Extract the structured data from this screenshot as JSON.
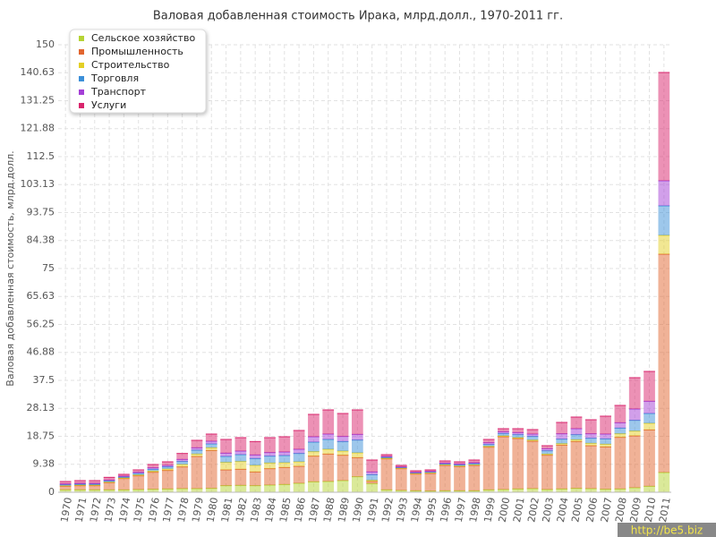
{
  "chart_data": {
    "type": "stacked_bar",
    "title": "Валовая добавленная стоимость Ирака, млрд.долл., 1970-2011 гг.",
    "y_label": "Валовая добавленная стоимость, млрд.долл.",
    "watermark": "http://be5.biz",
    "categories": [
      "1970",
      "1971",
      "1972",
      "1973",
      "1974",
      "1975",
      "1976",
      "1977",
      "1978",
      "1979",
      "1980",
      "1981",
      "1982",
      "1983",
      "1984",
      "1985",
      "1986",
      "1987",
      "1988",
      "1989",
      "1990",
      "1991",
      "1992",
      "1993",
      "1994",
      "1995",
      "1996",
      "1997",
      "1998",
      "1999",
      "2000",
      "2001",
      "2002",
      "2003",
      "2004",
      "2005",
      "2006",
      "2007",
      "2008",
      "2009",
      "2010",
      "2011"
    ],
    "series": [
      {
        "name": "Сельское хозяйство",
        "color": "#b5d334",
        "values": [
          0.8,
          0.8,
          0.8,
          0.8,
          0.8,
          0.9,
          1,
          1.1,
          1.2,
          1.2,
          1.3,
          2.2,
          2.3,
          2.2,
          2.4,
          2.6,
          3,
          3.5,
          3.6,
          3.9,
          5.2,
          2.9,
          0.8,
          0.6,
          0.5,
          0.4,
          0.5,
          0.5,
          0.5,
          0.8,
          0.9,
          1.1,
          1.2,
          0.9,
          1.1,
          1.3,
          1.2,
          1,
          1.1,
          1.5,
          2,
          6.6
        ]
      },
      {
        "name": "Промышленность",
        "color": "#e2652f",
        "values": [
          1.2,
          1.4,
          1.4,
          2.4,
          3.8,
          4.6,
          5.7,
          6.2,
          7.3,
          10.8,
          12.7,
          5.3,
          5.4,
          4.6,
          5.5,
          5.7,
          5.7,
          8.6,
          9.2,
          8.5,
          6.4,
          0.7,
          10.4,
          7.3,
          5.6,
          5.9,
          8.5,
          8.1,
          8.5,
          14.3,
          17.7,
          16.9,
          15.9,
          11.5,
          14.7,
          15.7,
          14.4,
          14.2,
          17.3,
          17.4,
          18.9,
          73.2
        ]
      },
      {
        "name": "Строительство",
        "color": "#e3cf25",
        "values": [
          0.2,
          0.2,
          0.2,
          0.2,
          0.2,
          0.3,
          0.4,
          0.5,
          0.8,
          0.8,
          0.9,
          2.5,
          2.6,
          2.2,
          1.9,
          1.6,
          1.5,
          1.5,
          1.6,
          1.4,
          1.6,
          0.4,
          0.2,
          0.2,
          0.2,
          0.2,
          0.2,
          0.2,
          0.2,
          0.3,
          0.3,
          0.3,
          0.4,
          0.4,
          0.5,
          0.6,
          0.8,
          0.9,
          1.2,
          1.6,
          2.2,
          6.3
        ]
      },
      {
        "name": "Торговля",
        "color": "#3b8fd8",
        "values": [
          0.3,
          0.3,
          0.3,
          0.4,
          0.3,
          0.5,
          0.6,
          0.7,
          1,
          1.3,
          1.3,
          2,
          2.3,
          2.3,
          2.3,
          2.4,
          2.8,
          3.2,
          3.3,
          3.2,
          4.3,
          1.9,
          0.3,
          0.2,
          0.2,
          0.3,
          0.3,
          0.4,
          0.4,
          0.6,
          0.8,
          1,
          1.2,
          1.1,
          1.5,
          1.7,
          1.7,
          1.8,
          1.9,
          3.6,
          3.3,
          9.9
        ]
      },
      {
        "name": "Транспорт",
        "color": "#a43fd6",
        "values": [
          0.3,
          0.3,
          0.3,
          0.3,
          0.3,
          0.4,
          0.5,
          0.5,
          0.7,
          0.8,
          0.9,
          1.1,
          1.2,
          1.2,
          1.2,
          1.2,
          1.4,
          1.8,
          1.8,
          1.7,
          1.9,
          0.9,
          0.3,
          0.2,
          0.2,
          0.2,
          0.3,
          0.3,
          0.3,
          0.6,
          0.6,
          0.7,
          0.8,
          0.7,
          1.8,
          2,
          1.5,
          1.6,
          1.8,
          3.8,
          4.1,
          8.4
        ]
      },
      {
        "name": "Услуги",
        "color": "#d9246c",
        "values": [
          0.8,
          0.9,
          0.9,
          0.9,
          0.6,
          0.8,
          1.1,
          1.2,
          2,
          2.5,
          2.4,
          4.6,
          4.5,
          4.5,
          5,
          5.1,
          6.3,
          7.5,
          8.1,
          7.7,
          8.2,
          4,
          0.6,
          0.5,
          0.5,
          0.5,
          0.7,
          0.7,
          0.9,
          1.1,
          1,
          1.3,
          1.5,
          1,
          3.8,
          3.9,
          4.7,
          6,
          5.8,
          10.5,
          10,
          36.3
        ]
      }
    ],
    "ylim": [
      0,
      150
    ],
    "yticks": [
      0,
      9.38,
      18.75,
      28.13,
      37.5,
      46.88,
      56.25,
      65.63,
      75,
      84.38,
      93.75,
      103.13,
      112.5,
      121.88,
      131.25,
      140.63,
      150
    ],
    "grid": true
  }
}
